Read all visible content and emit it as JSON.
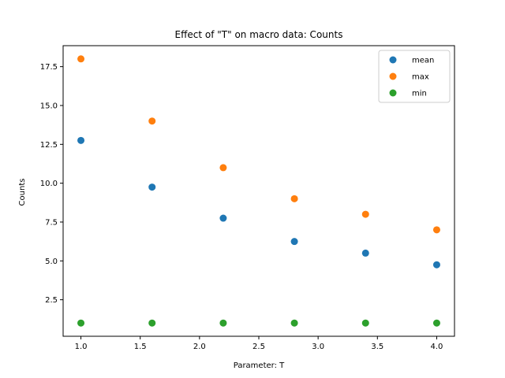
{
  "chart_data": {
    "type": "scatter",
    "title": "Effect of \"T\" on macro data: Counts",
    "xlabel": "Parameter: T",
    "ylabel": "Counts",
    "xlim": [
      0.85,
      4.15
    ],
    "ylim": [
      0.15,
      18.85
    ],
    "xticks": [
      1.0,
      1.5,
      2.0,
      2.5,
      3.0,
      3.5,
      4.0
    ],
    "xtick_labels": [
      "1.0",
      "1.5",
      "2.0",
      "2.5",
      "3.0",
      "3.5",
      "4.0"
    ],
    "yticks": [
      2.5,
      5.0,
      7.5,
      10.0,
      12.5,
      15.0,
      17.5
    ],
    "ytick_labels": [
      "2.5",
      "5.0",
      "7.5",
      "10.0",
      "12.5",
      "15.0",
      "17.5"
    ],
    "grid": false,
    "legend_position": "top-right",
    "x": [
      1.0,
      1.6,
      2.2,
      2.8,
      3.4,
      4.0
    ],
    "series": [
      {
        "name": "mean",
        "color": "#1f77b4",
        "values": [
          12.75,
          9.75,
          7.75,
          6.25,
          5.5,
          4.75
        ]
      },
      {
        "name": "max",
        "color": "#ff7f0e",
        "values": [
          18,
          14,
          11,
          9,
          8,
          7
        ]
      },
      {
        "name": "min",
        "color": "#2ca02c",
        "values": [
          1,
          1,
          1,
          1,
          1,
          1
        ]
      }
    ]
  }
}
